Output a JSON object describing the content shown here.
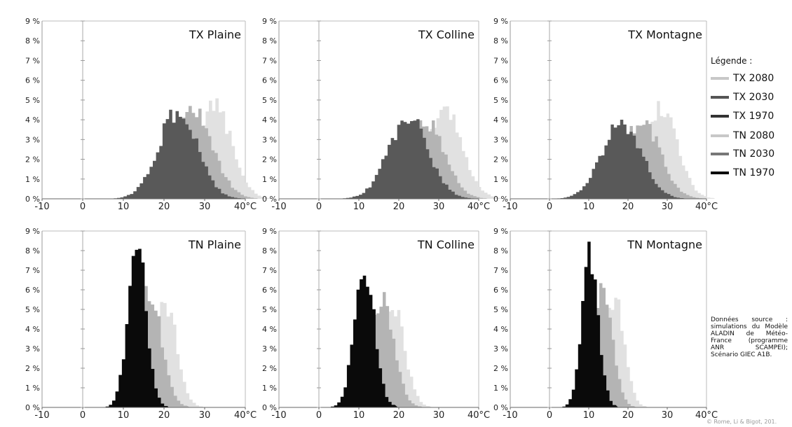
{
  "legend": {
    "title": "Légende :",
    "items": [
      {
        "label": "TX 2080",
        "color": "#c8c8c8"
      },
      {
        "label": "TX 2030",
        "color": "#555555"
      },
      {
        "label": "TX 1970",
        "color": "#333333"
      },
      {
        "label": "TN 2080",
        "color": "#c8c8c8"
      },
      {
        "label": "TN 2030",
        "color": "#777777"
      },
      {
        "label": "TN 1970",
        "color": "#0a0a0a"
      }
    ]
  },
  "source_note": "Données source : simulations du Modèle ALADIN de Météo-France (programme ANR SCAMPEI); Scénario GIEC A1B.",
  "copyright": "© Rome, Li & Bigot, 201.",
  "chart_data": [
    {
      "type": "area",
      "title": "TX Plaine",
      "x_ticks": [
        "-10",
        "0",
        "10",
        "20",
        "30",
        "40°C"
      ],
      "y_ticks": [
        "0 %",
        "1 %",
        "2 %",
        "3 %",
        "4 %",
        "5 %",
        "6 %",
        "7 %",
        "8 %",
        "9 %"
      ],
      "xlim": [
        -10,
        40
      ],
      "ylim": [
        0,
        9
      ],
      "series": [
        {
          "name": "TX 2080",
          "color": "#e1e1e1",
          "center": 32,
          "sd": 4.3,
          "peak": 4.6
        },
        {
          "name": "TX 2030",
          "color": "#b4b4b4",
          "center": 27,
          "sd": 4.8,
          "peak": 4.3
        },
        {
          "name": "TX 1970",
          "color": "#595959",
          "center": 23,
          "sd": 4.8,
          "peak": 4.4
        }
      ]
    },
    {
      "type": "area",
      "title": "TX Colline",
      "x_ticks": [
        "-10",
        "0",
        "10",
        "20",
        "30",
        "40°C"
      ],
      "y_ticks": [
        "0 %",
        "1 %",
        "2 %",
        "3 %",
        "4 %",
        "5 %",
        "6 %",
        "7 %",
        "8 %",
        "9 %"
      ],
      "xlim": [
        -10,
        40
      ],
      "ylim": [
        0,
        9
      ],
      "series": [
        {
          "name": "TX 2080",
          "color": "#e1e1e1",
          "center": 31,
          "sd": 4.5,
          "peak": 4.4
        },
        {
          "name": "TX 2030",
          "color": "#b4b4b4",
          "center": 26,
          "sd": 4.8,
          "peak": 4.0
        },
        {
          "name": "TX 1970",
          "color": "#595959",
          "center": 22,
          "sd": 5.0,
          "peak": 4.1
        }
      ]
    },
    {
      "type": "area",
      "title": "TX Montagne",
      "x_ticks": [
        "-10",
        "0",
        "10",
        "20",
        "30",
        "40°C"
      ],
      "y_ticks": [
        "0 %",
        "1 %",
        "2 %",
        "3 %",
        "4 %",
        "5 %",
        "6 %",
        "7 %",
        "8 %",
        "9 %"
      ],
      "xlim": [
        -10,
        40
      ],
      "ylim": [
        0,
        9
      ],
      "series": [
        {
          "name": "TX 2080",
          "color": "#e1e1e1",
          "center": 28,
          "sd": 4.2,
          "peak": 4.6
        },
        {
          "name": "TX 2030",
          "color": "#b4b4b4",
          "center": 23,
          "sd": 4.8,
          "peak": 3.9
        },
        {
          "name": "TX 1970",
          "color": "#595959",
          "center": 18,
          "sd": 5.0,
          "peak": 3.9
        }
      ]
    },
    {
      "type": "area",
      "title": "TN Plaine",
      "x_ticks": [
        "-10",
        "0",
        "10",
        "20",
        "30",
        "40°C"
      ],
      "y_ticks": [
        "0 %",
        "1 %",
        "2 %",
        "3 %",
        "4 %",
        "5 %",
        "6 %",
        "7 %",
        "8 %",
        "9 %"
      ],
      "xlim": [
        -10,
        40
      ],
      "ylim": [
        0,
        9
      ],
      "series": [
        {
          "name": "TN 2080",
          "color": "#e1e1e1",
          "center": 20,
          "sd": 2.8,
          "peak": 5.4
        },
        {
          "name": "TN 2030",
          "color": "#b4b4b4",
          "center": 16,
          "sd": 3.0,
          "peak": 5.8
        },
        {
          "name": "TN 1970",
          "color": "#0a0a0a",
          "center": 13,
          "sd": 2.3,
          "peak": 8.1
        }
      ]
    },
    {
      "type": "area",
      "title": "TN Colline",
      "x_ticks": [
        "-10",
        "0",
        "10",
        "20",
        "30",
        "40°C"
      ],
      "y_ticks": [
        "0 %",
        "1 %",
        "2 %",
        "3 %",
        "4 %",
        "5 %",
        "6 %",
        "7 %",
        "8 %",
        "9 %"
      ],
      "xlim": [
        -10,
        40
      ],
      "ylim": [
        0,
        9
      ],
      "series": [
        {
          "name": "TN 2080",
          "color": "#e1e1e1",
          "center": 18,
          "sd": 3.0,
          "peak": 5.2
        },
        {
          "name": "TN 2030",
          "color": "#b4b4b4",
          "center": 15,
          "sd": 3.2,
          "peak": 5.5
        },
        {
          "name": "TN 1970",
          "color": "#0a0a0a",
          "center": 11,
          "sd": 2.5,
          "peak": 7.3
        }
      ]
    },
    {
      "type": "area",
      "title": "TN Montagne",
      "x_ticks": [
        "-10",
        "0",
        "10",
        "20",
        "30",
        "40°C"
      ],
      "y_ticks": [
        "0 %",
        "1 %",
        "2 %",
        "3 %",
        "4 %",
        "5 %",
        "6 %",
        "7 %",
        "8 %",
        "9 %"
      ],
      "xlim": [
        -10,
        40
      ],
      "ylim": [
        0,
        9
      ],
      "series": [
        {
          "name": "TN 2080",
          "color": "#e1e1e1",
          "center": 16,
          "sd": 2.6,
          "peak": 5.6
        },
        {
          "name": "TN 2030",
          "color": "#b4b4b4",
          "center": 13,
          "sd": 2.6,
          "peak": 5.8
        },
        {
          "name": "TN 1970",
          "color": "#0a0a0a",
          "center": 10,
          "sd": 2.1,
          "peak": 7.7
        }
      ]
    }
  ]
}
